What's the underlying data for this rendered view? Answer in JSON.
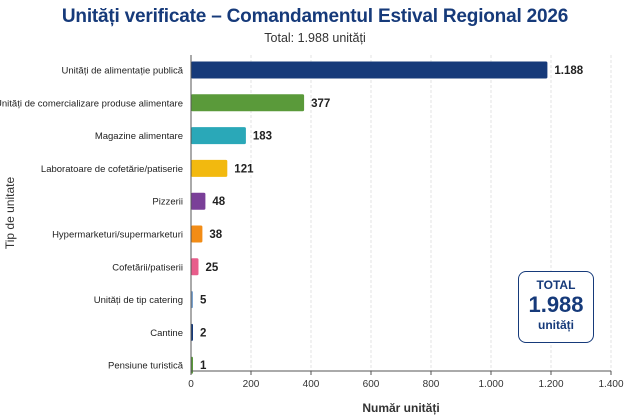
{
  "header": {
    "title": "Unități verificate – Comandamentul Estival Regional 2026",
    "subtitle": "Total: 1.988 unități"
  },
  "total_box": {
    "label": "TOTAL",
    "value": "1.988",
    "unit": "unități"
  },
  "chart_data": {
    "type": "bar",
    "orientation": "horizontal",
    "title": "Unități verificate – Comandamentul Estival Regional 2026",
    "subtitle": "Total: 1.988 unități",
    "xlabel": "Număr unități",
    "ylabel": "Tip de unitate",
    "xlim": [
      0,
      1400
    ],
    "xticks": [
      0,
      200,
      400,
      600,
      800,
      1000,
      1200,
      1400
    ],
    "xtick_labels": [
      "0",
      "200",
      "400",
      "600",
      "800",
      "1.000",
      "1.200",
      "1.400"
    ],
    "grid": "vertical",
    "categories": [
      "Unități de alimentație publică",
      "Unități de comercializare produse alimentare",
      "Magazine alimentare",
      "Laboratoare de cofetărie/patiserie",
      "Pizzerii",
      "Hypermarketuri/supermarketuri",
      "Cofetării/patiserii",
      "Unități de tip catering",
      "Cantine",
      "Pensiune turistică"
    ],
    "values": [
      1188,
      377,
      183,
      121,
      48,
      38,
      25,
      5,
      2,
      1
    ],
    "value_labels": [
      "1.188",
      "377",
      "183",
      "121",
      "48",
      "38",
      "25",
      "5",
      "2",
      "1"
    ],
    "colors": [
      "#163a7a",
      "#5a9a3a",
      "#2aa8b8",
      "#f2b90f",
      "#7a3f98",
      "#f28c16",
      "#e85d8b",
      "#7ba3cf",
      "#163a7a",
      "#5a9a3a"
    ]
  }
}
